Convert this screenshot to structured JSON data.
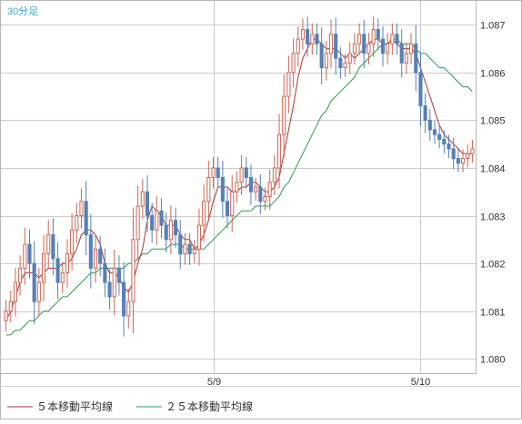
{
  "chart_data": {
    "type": "candlestick",
    "timeframe_label": "30分足",
    "x_tick_labels": [
      {
        "label": "5/9",
        "index": 44
      },
      {
        "label": "5/10",
        "index": 88
      }
    ],
    "y_ticks": [
      "1.080",
      "1.081",
      "1.082",
      "1.083",
      "1.084",
      "1.085",
      "1.086",
      "1.087"
    ],
    "ylim": [
      1.0797,
      1.0875
    ],
    "grid": true,
    "legend_position": "bottom-left",
    "colors": {
      "up": "#cc6655",
      "down": "#5580b8",
      "ma5": "#aa3333",
      "ma25": "#2f9a4f",
      "label": "#36a8d8"
    },
    "legend": [
      {
        "name": "５本移動平均線",
        "color": "#aa3333"
      },
      {
        "name": "２５本移動平均線",
        "color": "#2f9a4f"
      }
    ],
    "close": [
      1.081,
      1.0812,
      1.0816,
      1.0819,
      1.0824,
      1.082,
      1.0812,
      1.0816,
      1.0822,
      1.0826,
      1.0821,
      1.0816,
      1.0818,
      1.0822,
      1.0827,
      1.083,
      1.0833,
      1.0826,
      1.0819,
      1.0823,
      1.082,
      1.0816,
      1.0813,
      1.0819,
      1.0816,
      1.0809,
      1.0812,
      1.0825,
      1.0832,
      1.0835,
      1.083,
      1.0827,
      1.0831,
      1.0828,
      1.0825,
      1.0829,
      1.0826,
      1.0822,
      1.0824,
      1.0822,
      1.0823,
      1.0828,
      1.0833,
      1.0838,
      1.084,
      1.0838,
      1.0833,
      1.083,
      1.0835,
      1.0837,
      1.084,
      1.0838,
      1.0835,
      1.0836,
      1.0833,
      1.0834,
      1.0837,
      1.084,
      1.0847,
      1.0855,
      1.086,
      1.0864,
      1.0867,
      1.0869,
      1.0866,
      1.0868,
      1.0866,
      1.0861,
      1.0864,
      1.0868,
      1.0863,
      1.0861,
      1.0862,
      1.0864,
      1.0866,
      1.0868,
      1.0864,
      1.0866,
      1.0869,
      1.0867,
      1.0864,
      1.0866,
      1.0868,
      1.0866,
      1.0862,
      1.0864,
      1.0866,
      1.086,
      1.0853,
      1.085,
      1.0848,
      1.0847,
      1.0846,
      1.0845,
      1.0844,
      1.0842,
      1.0841,
      1.0842,
      1.0843,
      1.0844
    ],
    "ma5": [
      1.0808,
      1.081,
      1.0813,
      1.0816,
      1.0818,
      1.0818,
      1.0818,
      1.0817,
      1.0818,
      1.0819,
      1.0819,
      1.0819,
      1.082,
      1.082,
      1.0821,
      1.0823,
      1.0826,
      1.0827,
      1.0827,
      1.0826,
      1.0824,
      1.082,
      1.0818,
      1.0818,
      1.0817,
      1.0815,
      1.0814,
      1.0816,
      1.082,
      1.0823,
      1.0829,
      1.0832,
      1.0831,
      1.083,
      1.0828,
      1.0828,
      1.0828,
      1.0826,
      1.0825,
      1.0825,
      1.0823,
      1.0824,
      1.0826,
      1.0829,
      1.0833,
      1.0836,
      1.0836,
      1.0836,
      1.0835,
      1.0835,
      1.0836,
      1.0836,
      1.0837,
      1.0837,
      1.0836,
      1.0835,
      1.0835,
      1.0836,
      1.0838,
      1.0843,
      1.0848,
      1.0853,
      1.0859,
      1.0863,
      1.0865,
      1.0867,
      1.0867,
      1.0866,
      1.0865,
      1.0865,
      1.0865,
      1.0864,
      1.0863,
      1.0864,
      1.0863,
      1.0864,
      1.0865,
      1.0866,
      1.0867,
      1.0867,
      1.0866,
      1.0866,
      1.0867,
      1.0866,
      1.0865,
      1.0865,
      1.0865,
      1.0864,
      1.0861,
      1.0858,
      1.0855,
      1.0852,
      1.0849,
      1.0847,
      1.0846,
      1.0845,
      1.0844,
      1.0843,
      1.0843,
      1.0843
    ],
    "ma25": [
      1.0805,
      1.0805,
      1.0806,
      1.0806,
      1.0807,
      1.0808,
      1.0808,
      1.0809,
      1.081,
      1.081,
      1.0811,
      1.0812,
      1.0813,
      1.0813,
      1.0814,
      1.0815,
      1.0816,
      1.0817,
      1.0818,
      1.0818,
      1.0819,
      1.0819,
      1.0819,
      1.0819,
      1.0819,
      1.0819,
      1.082,
      1.082,
      1.0821,
      1.0822,
      1.0822,
      1.0823,
      1.0823,
      1.0823,
      1.0823,
      1.0824,
      1.0824,
      1.0824,
      1.0823,
      1.0823,
      1.0823,
      1.0823,
      1.0823,
      1.0824,
      1.0825,
      1.0826,
      1.0827,
      1.0828,
      1.0829,
      1.083,
      1.0831,
      1.0831,
      1.0831,
      1.0832,
      1.0832,
      1.0832,
      1.0832,
      1.0833,
      1.0834,
      1.0836,
      1.0837,
      1.0839,
      1.0841,
      1.0843,
      1.0845,
      1.0847,
      1.0849,
      1.0851,
      1.0852,
      1.0854,
      1.0855,
      1.0856,
      1.0857,
      1.0858,
      1.0859,
      1.0861,
      1.0862,
      1.0863,
      1.0864,
      1.0865,
      1.0866,
      1.0866,
      1.0867,
      1.0867,
      1.0866,
      1.0866,
      1.0866,
      1.0865,
      1.0864,
      1.0864,
      1.0863,
      1.0862,
      1.0861,
      1.0861,
      1.086,
      1.0859,
      1.0858,
      1.0857,
      1.0857,
      1.0856
    ]
  }
}
